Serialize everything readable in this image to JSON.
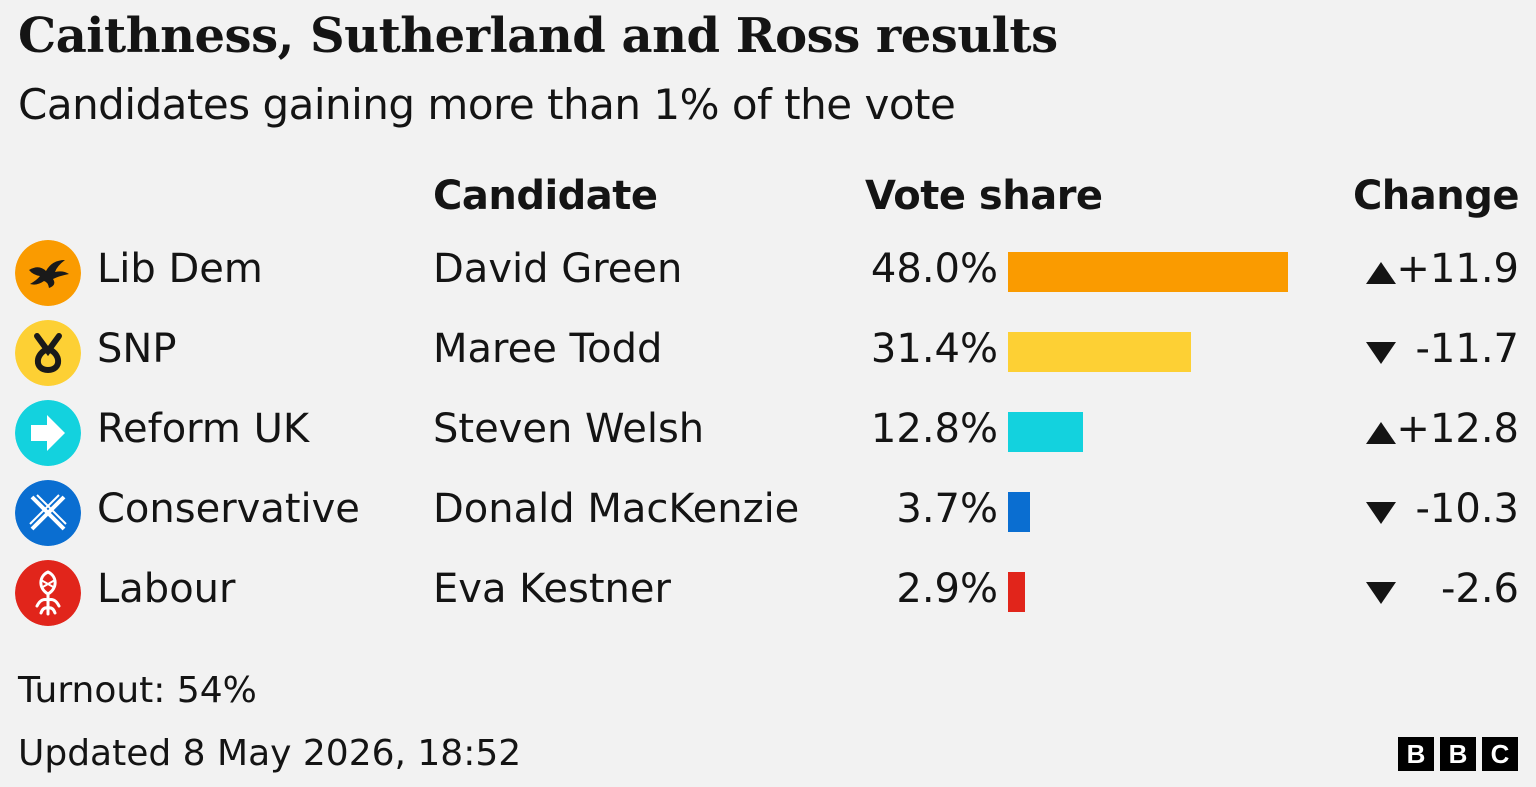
{
  "header": {
    "title": "Caithness, Sutherland and Ross results",
    "subtitle": "Candidates gaining more than 1% of the vote"
  },
  "columns": {
    "candidate": "Candidate",
    "vote_share": "Vote share",
    "change": "Change"
  },
  "chart_data": {
    "type": "bar",
    "orientation": "horizontal",
    "title": "Caithness, Sutherland and Ross results",
    "subtitle": "Candidates gaining more than 1% of the vote",
    "categories": [
      "Lib Dem",
      "SNP",
      "Reform UK",
      "Conservative",
      "Labour"
    ],
    "candidates": [
      "David Green",
      "Maree Todd",
      "Steven Welsh",
      "Donald MacKenzie",
      "Eva Kestner"
    ],
    "values": [
      48.0,
      31.4,
      12.8,
      3.7,
      2.9
    ],
    "value_labels": [
      "48.0%",
      "31.4%",
      "12.8%",
      "3.7%",
      "2.9%"
    ],
    "changes": [
      11.9,
      -11.7,
      12.8,
      -10.3,
      -2.6
    ],
    "change_labels": [
      "+11.9",
      "-11.7",
      "+12.8",
      "-10.3",
      "-2.6"
    ],
    "colors": [
      "#fa9b00",
      "#fdd034",
      "#13d2de",
      "#0a6ed1",
      "#e1251b"
    ],
    "logo_icons": [
      "lib-dem-bird-icon",
      "snp-symbol-icon",
      "reform-arrow-icon",
      "saltire-cross-icon",
      "thistle-icon"
    ],
    "xlim": [
      0,
      48.0
    ],
    "grid": false,
    "legend": "none"
  },
  "footer": {
    "turnout": "Turnout: 54%",
    "updated": "Updated 8 May 2026, 18:52",
    "logo": [
      "B",
      "B",
      "C"
    ]
  }
}
